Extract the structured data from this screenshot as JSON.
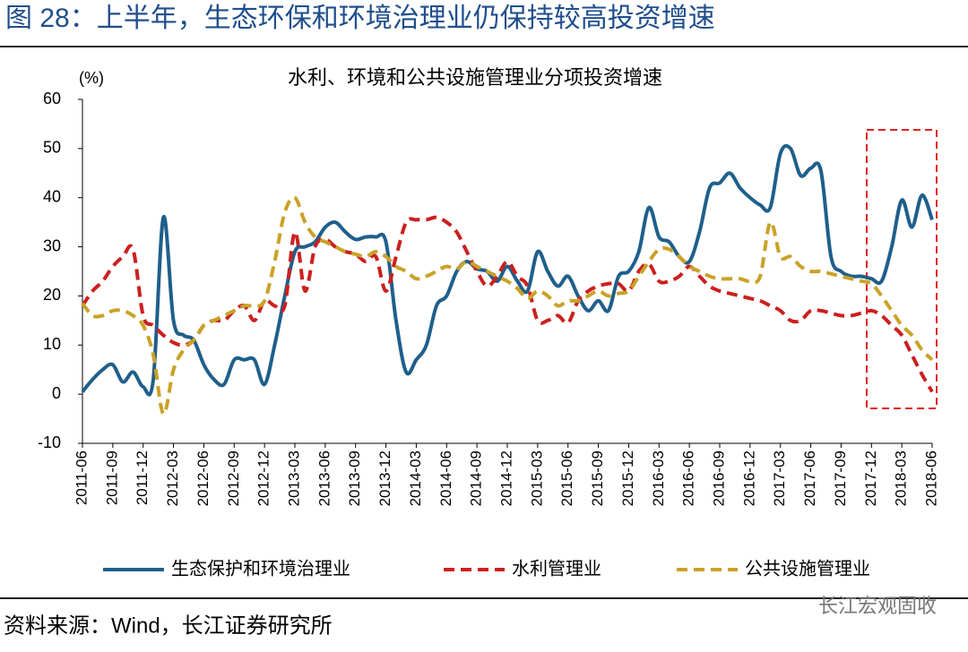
{
  "header": {
    "title": "图 28：上半年，生态环保和环境治理业仍保持较高投资增速"
  },
  "chart_data": {
    "type": "line",
    "title": "水利、环境和公共设施管理业分项投资增速",
    "y_label": "(%)",
    "categories": [
      "2011-06",
      null,
      null,
      "2011-09",
      null,
      null,
      "2011-12",
      null,
      null,
      "2012-03",
      null,
      null,
      "2012-06",
      null,
      null,
      "2012-09",
      null,
      null,
      "2012-12",
      null,
      null,
      "2013-03",
      null,
      null,
      "2013-06",
      null,
      null,
      "2013-09",
      null,
      null,
      "2013-12",
      null,
      null,
      "2014-03",
      null,
      null,
      "2014-06",
      null,
      null,
      "2014-09",
      null,
      null,
      "2014-12",
      null,
      null,
      "2015-03",
      null,
      null,
      "2015-06",
      null,
      null,
      "2015-09",
      null,
      null,
      "2015-12",
      null,
      null,
      "2016-03",
      null,
      null,
      "2016-06",
      null,
      null,
      "2016-09",
      null,
      null,
      "2016-12",
      null,
      null,
      "2017-03",
      null,
      null,
      "2017-06",
      null,
      null,
      "2017-09",
      null,
      null,
      "2017-12",
      null,
      null,
      "2018-03",
      null,
      null,
      "2018-06"
    ],
    "series": [
      {
        "name": "生态保护和环境治理业",
        "color": "#1f5f8b",
        "dash": "solid",
        "values": [
          0.5,
          3,
          5,
          6,
          2.5,
          4.5,
          1.5,
          3,
          36,
          15,
          12,
          11,
          6,
          3,
          2,
          7,
          7,
          7,
          2,
          10,
          20,
          29,
          30,
          31,
          34,
          35,
          33,
          31.5,
          32,
          32,
          31,
          15,
          4.5,
          7,
          10,
          18,
          20,
          25,
          27,
          25.5,
          25,
          23,
          26,
          23,
          21,
          29,
          25,
          22,
          24,
          20,
          17,
          19,
          17,
          24,
          25,
          29,
          38,
          32,
          31,
          28,
          27,
          33,
          42,
          43,
          45,
          42,
          40,
          38.5,
          38,
          49,
          50,
          44.5,
          46,
          45.5,
          28,
          25,
          24,
          24,
          23.5,
          23,
          30,
          39.5,
          34,
          40.5,
          35.5
        ]
      },
      {
        "name": "水利管理业",
        "color": "#cc1f1f",
        "dash": "dashed",
        "values": [
          18,
          21,
          23,
          26,
          28,
          29.5,
          16,
          14,
          12,
          10.5,
          10,
          11,
          14,
          15,
          15,
          17,
          18,
          15,
          19,
          18,
          18,
          33,
          21,
          30,
          31.5,
          30,
          29,
          28.5,
          27,
          28,
          21,
          28,
          35,
          35.5,
          35.5,
          36,
          35,
          33,
          29,
          25,
          22,
          24,
          27,
          24,
          22,
          15,
          15,
          16,
          14.5,
          19,
          21,
          22,
          22.5,
          22.5,
          21,
          25,
          26.5,
          23,
          23,
          24,
          26,
          24,
          22,
          21,
          20.5,
          20,
          19.5,
          19,
          18,
          17,
          15,
          15,
          17,
          17,
          16.5,
          16,
          16,
          16.5,
          17,
          16,
          14,
          12,
          8,
          4,
          0.5
        ]
      },
      {
        "name": "公共设施管理业",
        "color": "#c9a227",
        "dash": "dashed",
        "values": [
          18.5,
          16,
          16,
          17,
          17,
          16,
          14,
          8,
          -4,
          5,
          9,
          11,
          14,
          15,
          16,
          17,
          18,
          18,
          19,
          27,
          37,
          40,
          35,
          32,
          31,
          30,
          29,
          28.5,
          28,
          29,
          28,
          26,
          25,
          23.5,
          24,
          25,
          26,
          25.5,
          27,
          26,
          25,
          24,
          23,
          21.5,
          19.5,
          21,
          20,
          18,
          19,
          19,
          20,
          21,
          20,
          20.5,
          21,
          24,
          27,
          29.5,
          29.5,
          28,
          26,
          25,
          24,
          23.5,
          23.5,
          23.5,
          23,
          24,
          35,
          28,
          28,
          26,
          25,
          25,
          24.5,
          24,
          23.5,
          23,
          22.5,
          20,
          17,
          14,
          12,
          9,
          7
        ]
      }
    ],
    "ylim": [
      -10,
      60
    ],
    "yticks": [
      -10,
      0,
      10,
      20,
      30,
      40,
      50,
      60
    ],
    "grid": false,
    "legend": "bottom"
  },
  "footer": {
    "source": "资料来源：Wind，长江证券研究所",
    "watermark": "长江宏观固收"
  }
}
